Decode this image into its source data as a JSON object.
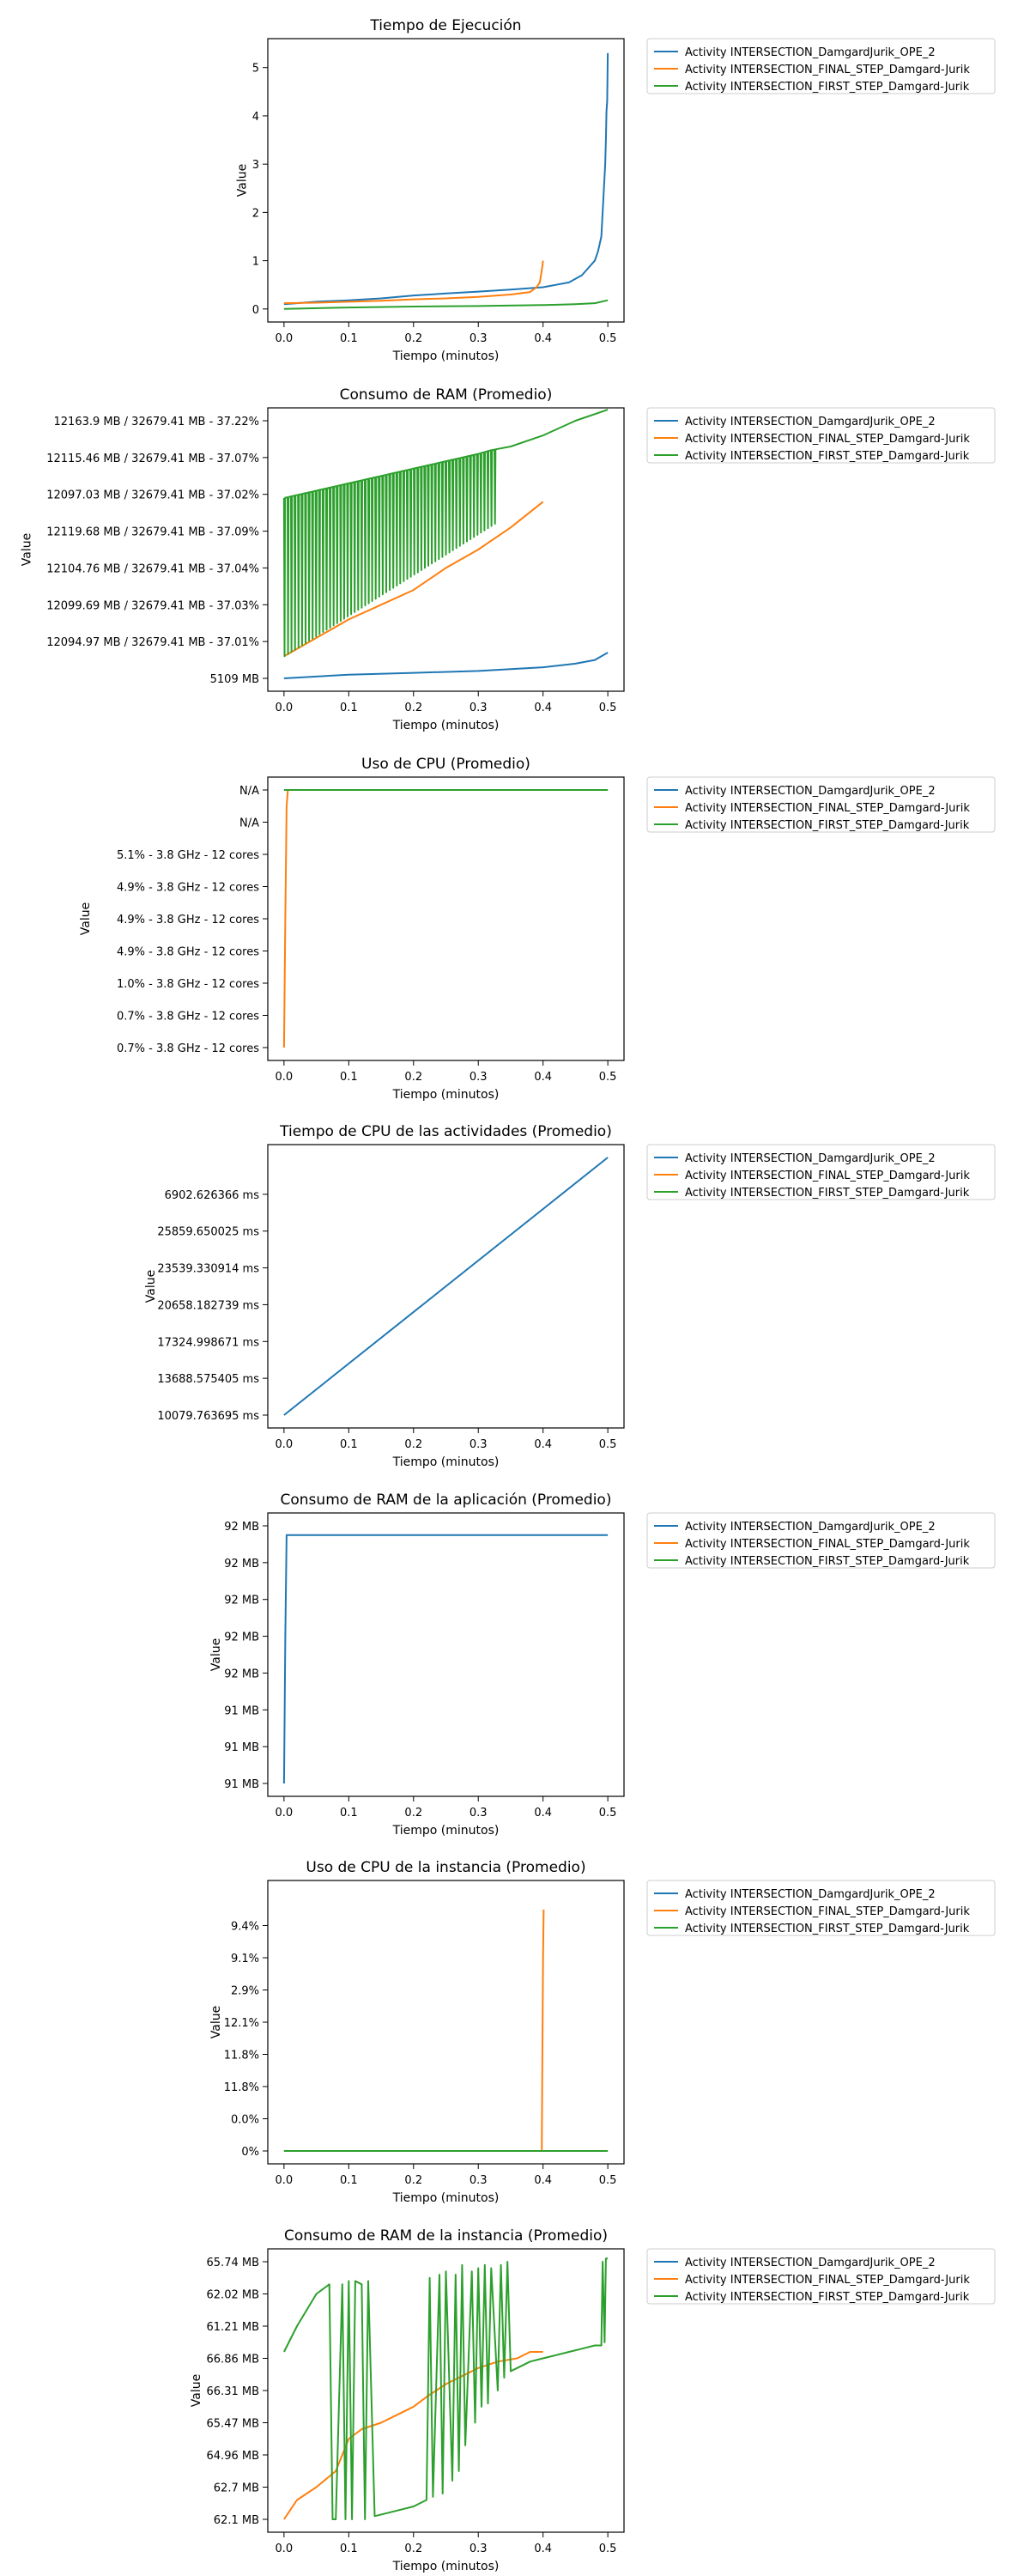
{
  "legend_labels": [
    "Activity INTERSECTION_DamgardJurik_OPE_2",
    "Activity INTERSECTION_FINAL_STEP_Damgard-Jurik",
    "Activity INTERSECTION_FIRST_STEP_Damgard-Jurik"
  ],
  "series_colors": [
    "#1f77b4",
    "#ff7f0e",
    "#2ca02c"
  ],
  "chart_data": [
    {
      "type": "line",
      "title": "Tiempo de Ejecución",
      "xlabel": "Tiempo (minutos)",
      "ylabel": "Value",
      "xlim": [
        -0.025,
        0.525
      ],
      "ylim": [
        -0.27,
        5.6
      ],
      "x_ticks": [
        0.0,
        0.1,
        0.2,
        0.3,
        0.4,
        0.5
      ],
      "x_tick_labels": [
        "0.0",
        "0.1",
        "0.2",
        "0.3",
        "0.4",
        "0.5"
      ],
      "y_ticks": [
        0,
        1,
        2,
        3,
        4,
        5
      ],
      "y_tick_labels": [
        "0",
        "1",
        "2",
        "3",
        "4",
        "5"
      ],
      "legend": "outside-right-top",
      "series": [
        {
          "name": "Activity INTERSECTION_DamgardJurik_OPE_2",
          "color": "#1f77b4",
          "x": [
            0,
            0.05,
            0.1,
            0.15,
            0.2,
            0.25,
            0.3,
            0.35,
            0.4,
            0.42,
            0.44,
            0.46,
            0.47,
            0.48,
            0.485,
            0.49,
            0.492,
            0.494,
            0.496,
            0.497,
            0.498,
            0.499,
            0.5
          ],
          "y": [
            0.1,
            0.15,
            0.18,
            0.22,
            0.28,
            0.32,
            0.36,
            0.4,
            0.45,
            0.5,
            0.55,
            0.7,
            0.85,
            1.0,
            1.2,
            1.5,
            2.0,
            2.5,
            3.0,
            3.5,
            4.1,
            4.3,
            5.3
          ]
        },
        {
          "name": "Activity INTERSECTION_FINAL_STEP_Damgard-Jurik",
          "color": "#ff7f0e",
          "x": [
            0,
            0.05,
            0.1,
            0.15,
            0.2,
            0.25,
            0.3,
            0.35,
            0.38,
            0.39,
            0.395,
            0.398,
            0.4
          ],
          "y": [
            0.12,
            0.13,
            0.15,
            0.17,
            0.2,
            0.22,
            0.25,
            0.3,
            0.35,
            0.45,
            0.55,
            0.8,
            1.0
          ]
        },
        {
          "name": "Activity INTERSECTION_FIRST_STEP_Damgard-Jurik",
          "color": "#2ca02c",
          "x": [
            0,
            0.1,
            0.2,
            0.3,
            0.4,
            0.45,
            0.48,
            0.5
          ],
          "y": [
            0.0,
            0.03,
            0.05,
            0.06,
            0.08,
            0.1,
            0.12,
            0.18
          ]
        }
      ]
    },
    {
      "type": "line",
      "title": "Consumo de RAM (Promedio)",
      "xlabel": "Tiempo (minutos)",
      "ylabel": "Value",
      "xlim": [
        -0.025,
        0.525
      ],
      "ylim": [
        -0.35,
        7.35
      ],
      "x_ticks": [
        0.0,
        0.1,
        0.2,
        0.3,
        0.4,
        0.5
      ],
      "x_tick_labels": [
        "0.0",
        "0.1",
        "0.2",
        "0.3",
        "0.4",
        "0.5"
      ],
      "y_ticks": [
        0,
        1,
        2,
        3,
        4,
        5,
        6,
        7
      ],
      "y_tick_labels": [
        "5109 MB",
        "12094.97 MB / 32679.41 MB - 37.01%",
        "12099.69 MB / 32679.41 MB - 37.03%",
        "12104.76 MB / 32679.41 MB - 37.04%",
        "12119.68 MB / 32679.41 MB - 37.09%",
        "12097.03 MB / 32679.41 MB - 37.02%",
        "12115.46 MB / 32679.41 MB - 37.07%",
        "12163.9 MB / 32679.41 MB - 37.22%"
      ],
      "legend": "outside-right-top",
      "series": [
        {
          "name": "Activity INTERSECTION_DamgardJurik_OPE_2",
          "color": "#1f77b4",
          "x": [
            0,
            0.1,
            0.2,
            0.3,
            0.4,
            0.45,
            0.48,
            0.5
          ],
          "y": [
            0,
            0.1,
            0.15,
            0.2,
            0.3,
            0.4,
            0.5,
            0.7
          ]
        },
        {
          "name": "Activity INTERSECTION_FINAL_STEP_Damgard-Jurik",
          "color": "#ff7f0e",
          "x": [
            0,
            0.05,
            0.1,
            0.15,
            0.2,
            0.25,
            0.3,
            0.35,
            0.4
          ],
          "y": [
            0.6,
            1.1,
            1.6,
            2.0,
            2.4,
            3.0,
            3.5,
            4.1,
            4.8
          ]
        },
        {
          "name": "Activity INTERSECTION_FIRST_STEP_Damgard-Jurik",
          "color": "#2ca02c",
          "x": [
            0,
            0.05,
            0.1,
            0.15,
            0.2,
            0.25,
            0.3,
            0.32,
            0.35,
            0.4,
            0.45,
            0.5
          ],
          "y": [
            4.9,
            5.1,
            5.3,
            5.5,
            5.7,
            5.9,
            6.1,
            6.2,
            6.3,
            6.6,
            7.0,
            7.3
          ],
          "spikes": {
            "from": 0,
            "to": 0.325,
            "count": 60,
            "low_start": 0.6,
            "low_end": 4.2
          }
        }
      ]
    },
    {
      "type": "line",
      "title": "Uso de CPU (Promedio)",
      "xlabel": "Tiempo (minutos)",
      "ylabel": "Value",
      "xlim": [
        -0.025,
        0.525
      ],
      "ylim": [
        -0.4,
        8.4
      ],
      "x_ticks": [
        0.0,
        0.1,
        0.2,
        0.3,
        0.4,
        0.5
      ],
      "x_tick_labels": [
        "0.0",
        "0.1",
        "0.2",
        "0.3",
        "0.4",
        "0.5"
      ],
      "y_ticks": [
        0,
        1,
        2,
        3,
        4,
        5,
        6,
        7,
        8
      ],
      "y_tick_labels": [
        "0.7% - 3.8 GHz - 12 cores",
        "0.7% - 3.8 GHz - 12 cores",
        "1.0% - 3.8 GHz - 12 cores",
        "4.9% - 3.8 GHz - 12 cores",
        "4.9% - 3.8 GHz - 12 cores",
        "4.9% - 3.8 GHz - 12 cores",
        "5.1% - 3.8 GHz - 12 cores",
        "N/A",
        "N/A"
      ],
      "legend": "outside-right-top",
      "series": [
        {
          "name": "Activity INTERSECTION_DamgardJurik_OPE_2",
          "color": "#1f77b4",
          "x": [
            0,
            0.5
          ],
          "y": [
            8,
            8
          ]
        },
        {
          "name": "Activity INTERSECTION_FINAL_STEP_Damgard-Jurik",
          "color": "#ff7f0e",
          "x": [
            0,
            0.002,
            0.004,
            0.006,
            0.4
          ],
          "y": [
            0,
            4,
            7.5,
            8,
            8
          ]
        },
        {
          "name": "Activity INTERSECTION_FIRST_STEP_Damgard-Jurik",
          "color": "#2ca02c",
          "x": [
            0,
            0.5
          ],
          "y": [
            8,
            8
          ]
        }
      ]
    },
    {
      "type": "line",
      "title": "Tiempo de CPU de las actividades (Promedio)",
      "xlabel": "Tiempo (minutos)",
      "ylabel": "Value",
      "xlim": [
        -0.025,
        0.525
      ],
      "ylim": [
        -0.35,
        7.35
      ],
      "x_ticks": [
        0.0,
        0.1,
        0.2,
        0.3,
        0.4,
        0.5
      ],
      "x_tick_labels": [
        "0.0",
        "0.1",
        "0.2",
        "0.3",
        "0.4",
        "0.5"
      ],
      "y_ticks": [
        0,
        1,
        2,
        3,
        4,
        5,
        6
      ],
      "y_tick_labels": [
        "10079.763695 ms",
        "13688.575405 ms",
        "17324.998671 ms",
        "20658.182739 ms",
        "23539.330914 ms",
        "25859.650025 ms",
        "6902.626366 ms"
      ],
      "legend": "outside-right-top",
      "series": [
        {
          "name": "Activity INTERSECTION_DamgardJurik_OPE_2",
          "color": "#1f77b4",
          "x": [
            0,
            0.5
          ],
          "y": [
            0,
            7
          ]
        }
      ]
    },
    {
      "type": "line",
      "title": "Consumo de RAM de la aplicación (Promedio)",
      "xlabel": "Tiempo (minutos)",
      "ylabel": "Value",
      "xlim": [
        -0.025,
        0.525
      ],
      "ylim": [
        -0.35,
        7.35
      ],
      "x_ticks": [
        0.0,
        0.1,
        0.2,
        0.3,
        0.4,
        0.5
      ],
      "x_tick_labels": [
        "0.0",
        "0.1",
        "0.2",
        "0.3",
        "0.4",
        "0.5"
      ],
      "y_ticks": [
        0,
        1,
        2,
        3,
        4,
        5,
        6,
        7
      ],
      "y_tick_labels": [
        "91 MB",
        "91 MB",
        "91 MB",
        "92 MB",
        "92 MB",
        "92 MB",
        "92 MB",
        "92 MB"
      ],
      "legend": "outside-right-top",
      "series": [
        {
          "name": "Activity INTERSECTION_DamgardJurik_OPE_2",
          "color": "#1f77b4",
          "x": [
            0,
            0.002,
            0.004,
            0.5
          ],
          "y": [
            0,
            4,
            6.75,
            6.75
          ]
        }
      ]
    },
    {
      "type": "line",
      "title": "Uso de CPU de la instancia (Promedio)",
      "xlabel": "Tiempo (minutos)",
      "ylabel": "Value",
      "xlim": [
        -0.025,
        0.525
      ],
      "ylim": [
        -0.4,
        8.4
      ],
      "x_ticks": [
        0.0,
        0.1,
        0.2,
        0.3,
        0.4,
        0.5
      ],
      "x_tick_labels": [
        "0.0",
        "0.1",
        "0.2",
        "0.3",
        "0.4",
        "0.5"
      ],
      "y_ticks": [
        0,
        1,
        2,
        3,
        4,
        5,
        6,
        7
      ],
      "y_tick_labels": [
        "0%",
        "0.0%",
        "11.8%",
        "11.8%",
        "12.1%",
        "2.9%",
        "9.1%",
        "9.4%"
      ],
      "legend": "outside-right-top",
      "series": [
        {
          "name": "Activity INTERSECTION_DamgardJurik_OPE_2",
          "color": "#1f77b4",
          "x": [
            0,
            0.5
          ],
          "y": [
            0,
            0
          ]
        },
        {
          "name": "Activity INTERSECTION_FINAL_STEP_Damgard-Jurik",
          "color": "#ff7f0e",
          "x": [
            0,
            0.398,
            0.399,
            0.4,
            0.401
          ],
          "y": [
            0,
            0,
            3,
            6,
            7.5
          ]
        },
        {
          "name": "Activity INTERSECTION_FIRST_STEP_Damgard-Jurik",
          "color": "#2ca02c",
          "x": [
            0,
            0.5
          ],
          "y": [
            0,
            0
          ]
        }
      ]
    },
    {
      "type": "line",
      "title": "Consumo de RAM de la instancia (Promedio)",
      "xlabel": "Tiempo (minutos)",
      "ylabel": "Value",
      "xlim": [
        -0.025,
        0.525
      ],
      "ylim": [
        -0.4,
        8.4
      ],
      "x_ticks": [
        0.0,
        0.1,
        0.2,
        0.3,
        0.4,
        0.5
      ],
      "x_tick_labels": [
        "0.0",
        "0.1",
        "0.2",
        "0.3",
        "0.4",
        "0.5"
      ],
      "y_ticks": [
        0,
        1,
        2,
        3,
        4,
        5,
        6,
        7,
        8
      ],
      "y_tick_labels": [
        "62.1 MB",
        "62.7 MB",
        "64.96 MB",
        "65.47 MB",
        "66.31 MB",
        "66.86 MB",
        "61.21 MB",
        "62.02 MB",
        "65.74 MB"
      ],
      "legend": "outside-right-top",
      "series": [
        {
          "name": "Activity INTERSECTION_DamgardJurik_OPE_2",
          "color": "#1f77b4",
          "x": [],
          "y": []
        },
        {
          "name": "Activity INTERSECTION_FINAL_STEP_Damgard-Jurik",
          "color": "#ff7f0e",
          "x": [
            0,
            0.02,
            0.05,
            0.08,
            0.1,
            0.12,
            0.15,
            0.18,
            0.2,
            0.22,
            0.25,
            0.28,
            0.3,
            0.33,
            0.36,
            0.38,
            0.4
          ],
          "y": [
            0,
            0.6,
            1.0,
            1.5,
            2.5,
            2.8,
            3.0,
            3.3,
            3.5,
            3.8,
            4.2,
            4.5,
            4.7,
            4.9,
            5.0,
            5.2,
            5.2
          ]
        },
        {
          "name": "Activity INTERSECTION_FIRST_STEP_Damgard-Jurik",
          "color": "#2ca02c",
          "x": [
            0,
            0.02,
            0.05,
            0.07,
            0.075,
            0.08,
            0.09,
            0.095,
            0.1,
            0.105,
            0.11,
            0.12,
            0.125,
            0.13,
            0.14,
            0.18,
            0.2,
            0.22,
            0.225,
            0.23,
            0.24,
            0.245,
            0.25,
            0.26,
            0.265,
            0.27,
            0.275,
            0.28,
            0.29,
            0.295,
            0.3,
            0.305,
            0.31,
            0.315,
            0.32,
            0.33,
            0.335,
            0.34,
            0.345,
            0.35,
            0.36,
            0.38,
            0.4,
            0.42,
            0.44,
            0.46,
            0.48,
            0.49,
            0.492,
            0.495,
            0.497,
            0.5
          ],
          "y": [
            5.2,
            6.0,
            7.0,
            7.3,
            0,
            0,
            7.3,
            0,
            7.4,
            0,
            7.4,
            7.3,
            0,
            7.4,
            0.1,
            0.3,
            0.4,
            0.6,
            7.5,
            0.7,
            7.6,
            0.8,
            7.7,
            1.2,
            7.6,
            1.5,
            7.9,
            2.3,
            7.7,
            3.0,
            7.8,
            3.5,
            7.9,
            3.6,
            7.8,
            4.0,
            7.9,
            4.4,
            8.0,
            4.6,
            4.7,
            4.9,
            5.0,
            5.1,
            5.2,
            5.3,
            5.4,
            5.4,
            8.0,
            5.5,
            8.1,
            8.1
          ]
        }
      ]
    }
  ]
}
